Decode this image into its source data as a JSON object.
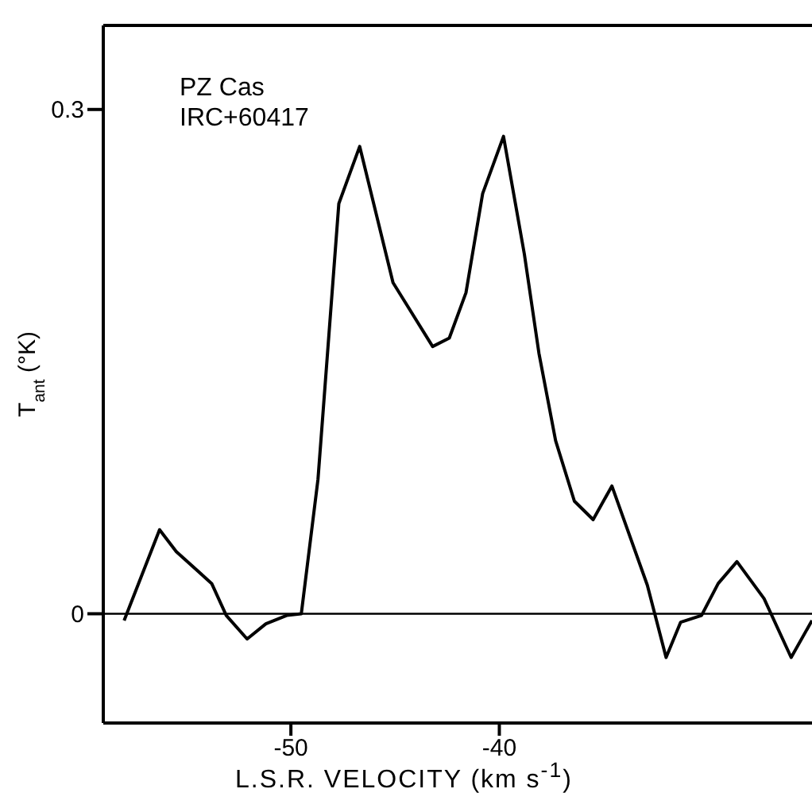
{
  "chart_data": {
    "type": "line",
    "xlabel": "L.S.R. VELOCITY (km s$^{-1}$)",
    "ylabel": "T$_{ant}$ (°K)",
    "annotations": [
      "PZ Cas",
      "IRC+60417"
    ],
    "x": [
      -58.0,
      -56.3,
      -55.5,
      -53.8,
      -53.1,
      -52.1,
      -51.2,
      -50.2,
      -49.5,
      -48.7,
      -47.7,
      -46.7,
      -45.1,
      -43.2,
      -42.4,
      -41.6,
      -40.8,
      -39.8,
      -38.8,
      -38.1,
      -37.3,
      -36.4,
      -35.5,
      -34.6,
      -32.9,
      -32.0,
      -31.3,
      -30.3,
      -29.5,
      -28.6,
      -27.3,
      -26.0,
      -25.0
    ],
    "series": [
      {
        "color": "#000000",
        "values": [
          -0.004,
          0.05,
          0.037,
          0.018,
          -0.001,
          -0.015,
          -0.006,
          -0.001,
          0,
          0.08,
          0.244,
          0.278,
          0.197,
          0.159,
          0.164,
          0.191,
          0.25,
          0.284,
          0.214,
          0.155,
          0.103,
          0.067,
          0.056,
          0.076,
          0.017,
          -0.026,
          -0.005,
          -0.001,
          0.018,
          0.031,
          0.009,
          -0.026,
          -0.004
        ]
      }
    ],
    "xlim": [
      -59,
      -25
    ],
    "xticks": [
      -50,
      -40
    ],
    "ylim": [
      -0.065,
      0.35
    ],
    "yticks": [
      0,
      0.3
    ],
    "ref_lines": [
      {
        "axis": "y",
        "value": 0,
        "color": "#000000"
      }
    ],
    "grid": false,
    "marker": "none",
    "line_style": "solid"
  }
}
